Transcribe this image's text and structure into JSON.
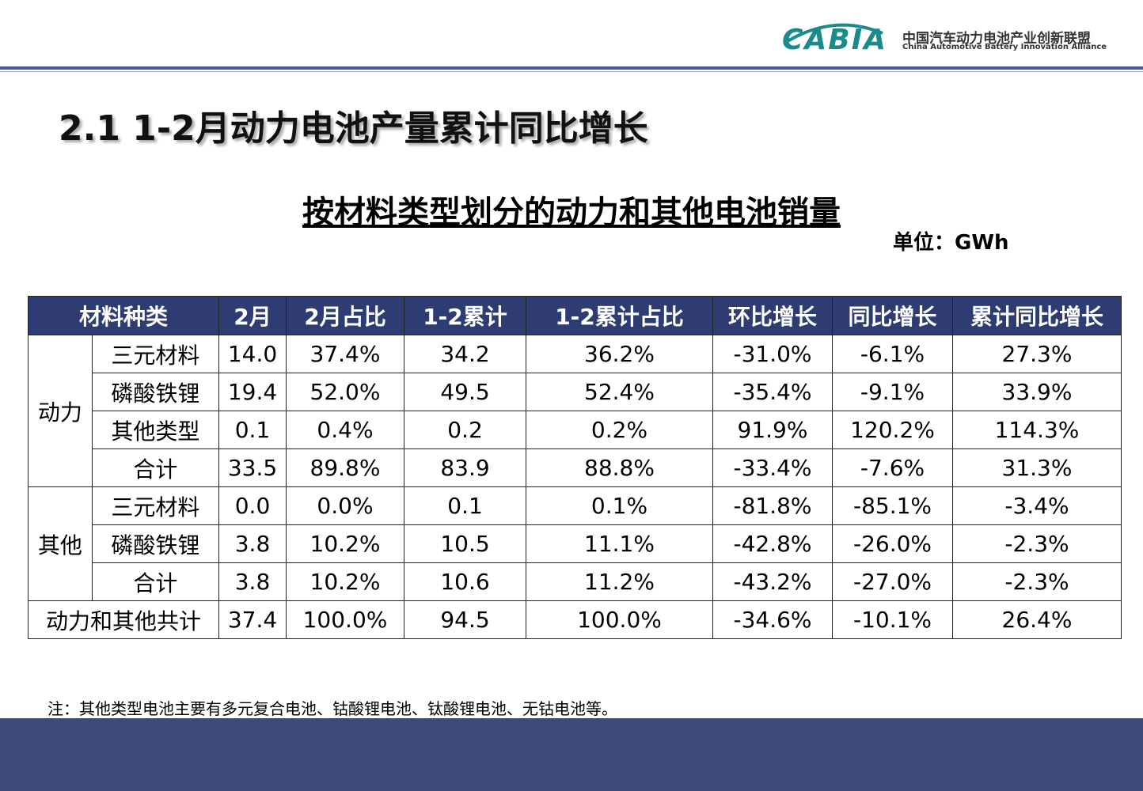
{
  "header": {
    "logo": "CABIA",
    "org_cn": "中国汽车动力电池产业创新联盟",
    "org_en": "China Automotive Battery Innovation Alliance"
  },
  "title": "2.1 1-2月动力电池产量累计同比增长",
  "subtitle": "按材料类型划分的动力和其他电池销量",
  "unit": "单位：GWh",
  "table": {
    "columns": [
      "材料种类",
      "2月",
      "2月占比",
      "1-2累计",
      "1-2累计占比",
      "环比增长",
      "同比增长",
      "累计同比增长"
    ],
    "groups": [
      {
        "label": "动力",
        "rows": [
          [
            "三元材料",
            "14.0",
            "37.4%",
            "34.2",
            "36.2%",
            "-31.0%",
            "-6.1%",
            "27.3%"
          ],
          [
            "磷酸铁锂",
            "19.4",
            "52.0%",
            "49.5",
            "52.4%",
            "-35.4%",
            "-9.1%",
            "33.9%"
          ],
          [
            "其他类型",
            "0.1",
            "0.4%",
            "0.2",
            "0.2%",
            "91.9%",
            "120.2%",
            "114.3%"
          ],
          [
            "合计",
            "33.5",
            "89.8%",
            "83.9",
            "88.8%",
            "-33.4%",
            "-7.6%",
            "31.3%"
          ]
        ]
      },
      {
        "label": "其他",
        "rows": [
          [
            "三元材料",
            "0.0",
            "0.0%",
            "0.1",
            "0.1%",
            "-81.8%",
            "-85.1%",
            "-3.4%"
          ],
          [
            "磷酸铁锂",
            "3.8",
            "10.2%",
            "10.5",
            "11.1%",
            "-42.8%",
            "-26.0%",
            "-2.3%"
          ],
          [
            "合计",
            "3.8",
            "10.2%",
            "10.6",
            "11.2%",
            "-43.2%",
            "-27.0%",
            "-2.3%"
          ]
        ]
      }
    ],
    "total": [
      "动力和其他共计",
      "37.4",
      "100.0%",
      "94.5",
      "100.0%",
      "-34.6%",
      "-10.1%",
      "26.4%"
    ]
  },
  "note": "注：其他类型电池主要有多元复合电池、钴酸锂电池、钛酸锂电池、无钴电池等。"
}
